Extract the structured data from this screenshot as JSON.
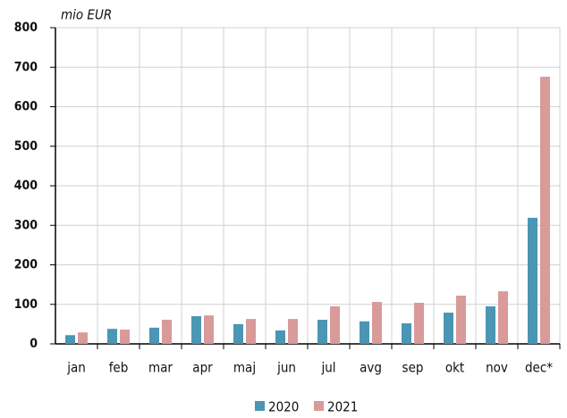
{
  "chart_data": {
    "type": "bar",
    "title": "mio EUR",
    "categories": [
      "jan",
      "feb",
      "mar",
      "apr",
      "maj",
      "jun",
      "jul",
      "avg",
      "sep",
      "okt",
      "nov",
      "dec*"
    ],
    "series": [
      {
        "name": "2020",
        "color": "#4a96b4",
        "values": [
          22,
          38,
          41,
          70,
          50,
          34,
          61,
          57,
          52,
          79,
          95,
          319
        ]
      },
      {
        "name": "2021",
        "color": "#d99a9a",
        "values": [
          29,
          36,
          61,
          72,
          63,
          63,
          95,
          106,
          104,
          122,
          133,
          676
        ]
      }
    ],
    "ylim": [
      0,
      800
    ],
    "yticks": [
      0,
      100,
      200,
      300,
      400,
      500,
      600,
      700,
      800
    ],
    "grid": true,
    "legend": "bottom"
  }
}
